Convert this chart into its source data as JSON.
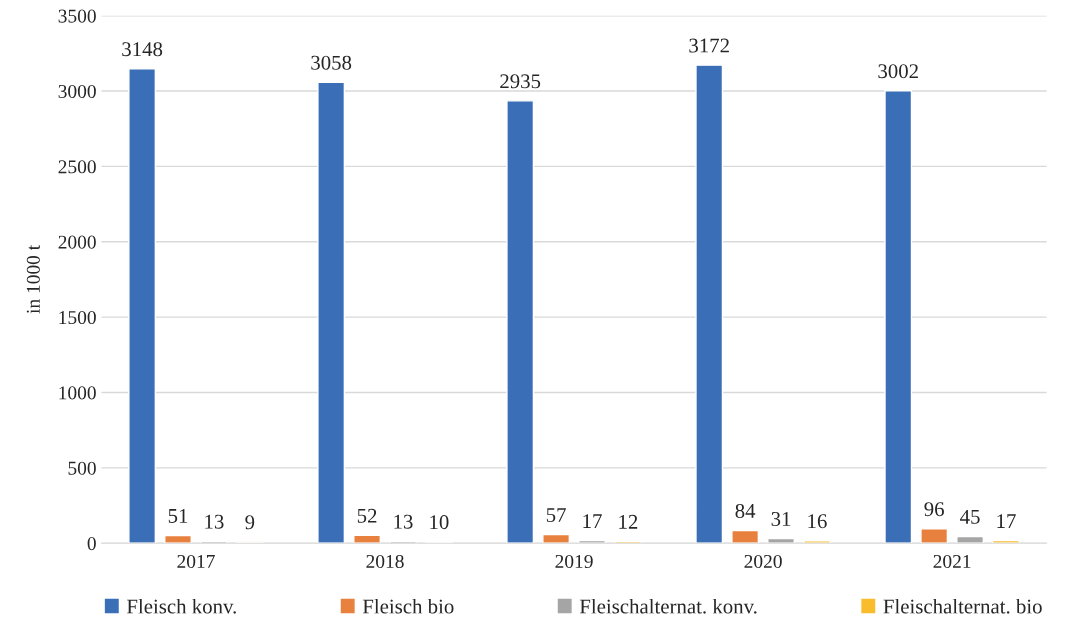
{
  "chart_data": {
    "type": "bar",
    "ylabel": "in 1000 t",
    "categories": [
      "2017",
      "2018",
      "2019",
      "2020",
      "2021"
    ],
    "series": [
      {
        "name": "Fleisch konv.",
        "color": "#3a6fb7",
        "values": [
          3148,
          3058,
          2935,
          3172,
          3002
        ]
      },
      {
        "name": "Fleisch bio",
        "color": "#e8803e",
        "values": [
          51,
          52,
          57,
          84,
          96
        ]
      },
      {
        "name": "Fleischalternat. konv.",
        "color": "#a5a5a5",
        "values": [
          13,
          13,
          17,
          31,
          45
        ]
      },
      {
        "name": "Fleischalternat. bio",
        "color": "#f9bc2c",
        "values": [
          9,
          10,
          12,
          16,
          17
        ]
      }
    ],
    "ylim": [
      0,
      3500
    ],
    "yticks": [
      0,
      500,
      1000,
      1500,
      2000,
      2500,
      3000,
      3500
    ],
    "grid": "y",
    "legend": "bottom",
    "data_labels": true
  }
}
